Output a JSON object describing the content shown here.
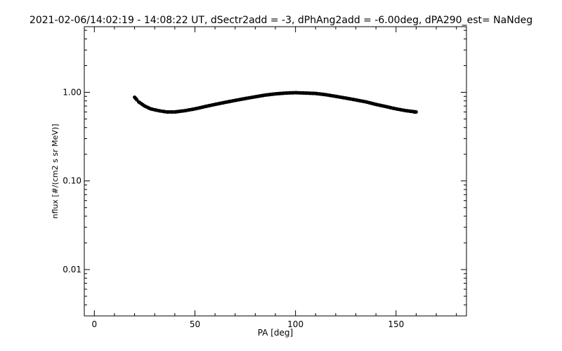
{
  "chart_data": {
    "type": "scatter",
    "title": "2021-02-06/14:02:19 - 14:08:22 UT, dSectr2add = -3, dPhAng2add = -6.00deg, dPA290_est=    NaNdeg",
    "xlabel": "PA [deg]",
    "ylabel": "nflux [#/(cm2 s sr MeV)]",
    "xlim": [
      -5,
      185
    ],
    "ylim": [
      0.003,
      5.5
    ],
    "yscale": "log",
    "grid": false,
    "x_ticks": [
      {
        "value": 0,
        "label": "0"
      },
      {
        "value": 50,
        "label": "50"
      },
      {
        "value": 100,
        "label": "100"
      },
      {
        "value": 150,
        "label": "150"
      }
    ],
    "y_ticks": [
      {
        "value": 0.01,
        "label": "0.01"
      },
      {
        "value": 0.1,
        "label": "0.10"
      },
      {
        "value": 1.0,
        "label": "1.00"
      }
    ],
    "series": [
      {
        "x": [
          20,
          22,
          25,
          28,
          32,
          36,
          40,
          45,
          50,
          55,
          60,
          65,
          70,
          75,
          80,
          85,
          90,
          95,
          100,
          105,
          110,
          115,
          120,
          125,
          130,
          135,
          140,
          145,
          150,
          155,
          160
        ],
        "y": [
          0.88,
          0.78,
          0.7,
          0.65,
          0.62,
          0.6,
          0.6,
          0.62,
          0.65,
          0.69,
          0.73,
          0.77,
          0.81,
          0.85,
          0.89,
          0.93,
          0.96,
          0.98,
          0.99,
          0.98,
          0.97,
          0.94,
          0.9,
          0.86,
          0.82,
          0.78,
          0.73,
          0.69,
          0.65,
          0.62,
          0.6
        ]
      }
    ]
  }
}
